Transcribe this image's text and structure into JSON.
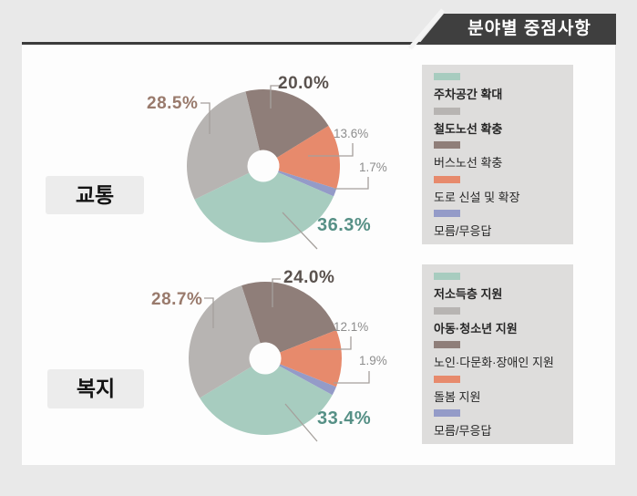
{
  "title": "분야별 중점사항",
  "ui_colors": {
    "page_background": "#e9e9e9",
    "panel_background": "#fdfdfd",
    "banner_background": "#3f3f3f",
    "banner_text": "#ffffff",
    "legend_background": "#dedddc",
    "category_box_background": "#ececec",
    "leader_line": "#a5a09c",
    "label_dark": "#5a524e",
    "label_rose": "#997a6c",
    "label_teal": "#569086",
    "label_gray": "#8d8d8d"
  },
  "chart_data": [
    {
      "type": "pie",
      "donut": true,
      "title": "교통",
      "labels": [
        "주차공간 확대",
        "철도노선 확충",
        "버스노선 확충",
        "도로 신설 및 확장",
        "모름/무응답"
      ],
      "values": [
        36.3,
        28.5,
        20.0,
        13.6,
        1.7
      ],
      "value_labels": [
        "36.3%",
        "28.5%",
        "20.0%",
        "13.6%",
        "1.7%"
      ],
      "colors": [
        "#a7ccbf",
        "#b7b4b2",
        "#8f7e79",
        "#e78a6c",
        "#949bc8"
      ],
      "legend_position": "right",
      "legend_emphasis": [
        true,
        true,
        false,
        false,
        false
      ]
    },
    {
      "type": "pie",
      "donut": true,
      "title": "복지",
      "labels": [
        "저소득층 지원",
        "아동·청소년 지원",
        "노인·다문화·장애인 지원",
        "돌봄 지원",
        "모름/무응답"
      ],
      "values": [
        33.4,
        28.7,
        24.0,
        12.1,
        1.9
      ],
      "value_labels": [
        "33.4%",
        "28.7%",
        "24.0%",
        "12.1%",
        "1.9%"
      ],
      "colors": [
        "#a7ccbf",
        "#b7b4b2",
        "#8f7e79",
        "#e78a6c",
        "#949bc8"
      ],
      "legend_position": "right",
      "legend_emphasis": [
        true,
        true,
        false,
        false,
        false
      ]
    }
  ]
}
